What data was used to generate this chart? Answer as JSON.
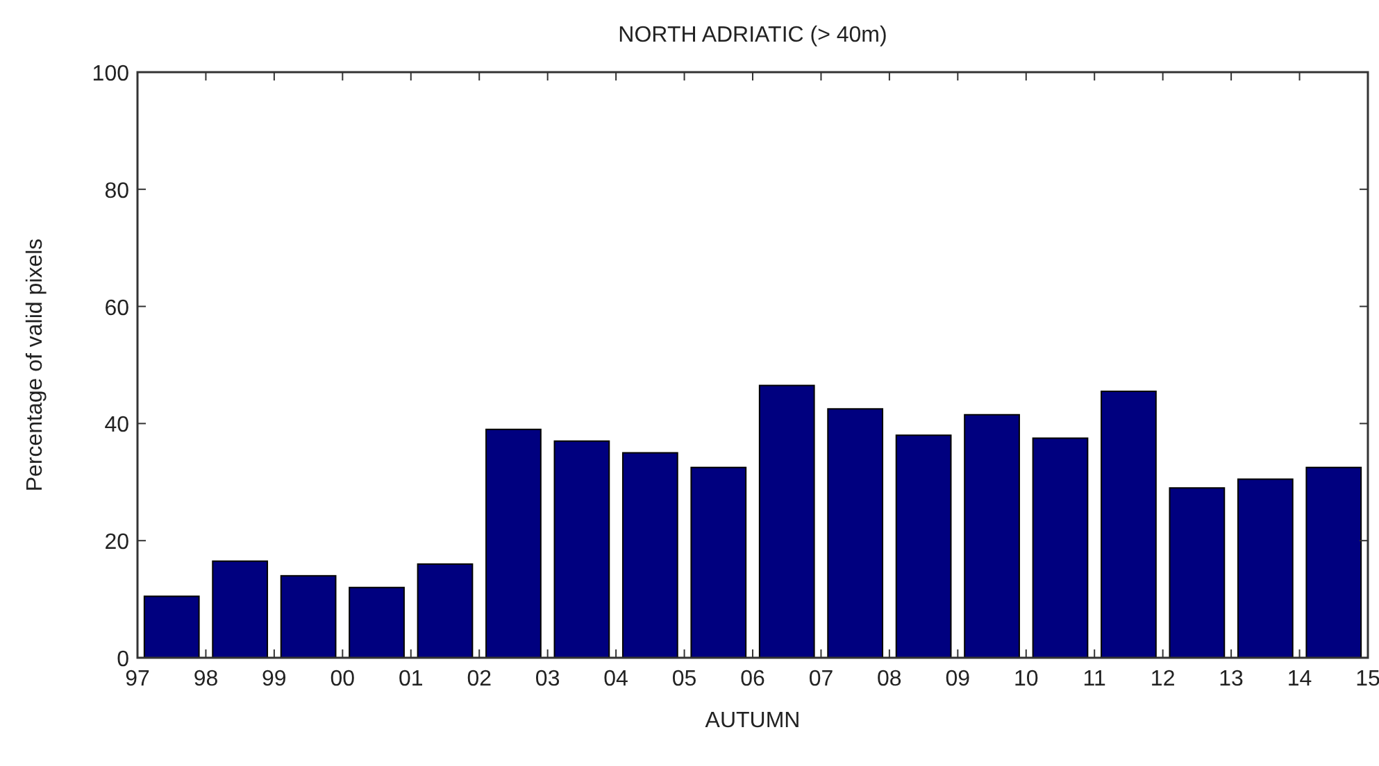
{
  "chart_data": {
    "type": "bar",
    "title": "NORTH ADRIATIC (> 40m)",
    "xlabel": "AUTUMN",
    "ylabel": "Percentage of valid pixels",
    "x": [
      1997.5,
      1998.5,
      1999.5,
      2000.5,
      2001.5,
      2002.5,
      2003.5,
      2004.5,
      2005.5,
      2006.5,
      2007.5,
      2008.5,
      2009.5,
      2010.5,
      2011.5,
      2012.5,
      2013.5,
      2014.5
    ],
    "values": [
      10.5,
      16.5,
      14,
      12,
      16,
      39,
      37,
      35,
      32.5,
      46.5,
      42.5,
      38,
      41.5,
      37.5,
      45.5,
      29,
      30.5,
      32.5
    ],
    "color": "#00007f",
    "xlim": [
      1997,
      2015
    ],
    "xticks": [
      {
        "value": 1997,
        "label": "97"
      },
      {
        "value": 1998,
        "label": "98"
      },
      {
        "value": 1999,
        "label": "99"
      },
      {
        "value": 2000,
        "label": "00"
      },
      {
        "value": 2001,
        "label": "01"
      },
      {
        "value": 2002,
        "label": "02"
      },
      {
        "value": 2003,
        "label": "03"
      },
      {
        "value": 2004,
        "label": "04"
      },
      {
        "value": 2005,
        "label": "05"
      },
      {
        "value": 2006,
        "label": "06"
      },
      {
        "value": 2007,
        "label": "07"
      },
      {
        "value": 2008,
        "label": "08"
      },
      {
        "value": 2009,
        "label": "09"
      },
      {
        "value": 2010,
        "label": "10"
      },
      {
        "value": 2011,
        "label": "11"
      },
      {
        "value": 2012,
        "label": "12"
      },
      {
        "value": 2013,
        "label": "13"
      },
      {
        "value": 2014,
        "label": "14"
      },
      {
        "value": 2015,
        "label": "15"
      }
    ],
    "ylim": [
      0,
      100
    ],
    "yticks": [
      0,
      20,
      40,
      60,
      80,
      100
    ],
    "grid": false
  }
}
